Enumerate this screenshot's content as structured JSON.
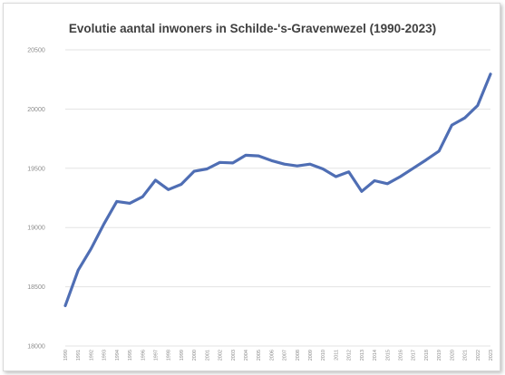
{
  "chart_data": {
    "type": "line",
    "title": "Evolutie aantal inwoners in Schilde-'s-Gravenwezel (1990-2023)",
    "xlabel": "",
    "ylabel": "",
    "ylim": [
      18000,
      20500
    ],
    "yticks": [
      18000,
      18500,
      19000,
      19500,
      20000,
      20500
    ],
    "ytick_labels": [
      "18000",
      "18500",
      "19000",
      "19500",
      "20000",
      "20500"
    ],
    "grid": true,
    "line_color": "#4f6eb4",
    "categories": [
      "1990",
      "1991",
      "1992",
      "1993",
      "1994",
      "1995",
      "1996",
      "1997",
      "1998",
      "1999",
      "2000",
      "2001",
      "2002",
      "2003",
      "2004",
      "2005",
      "2006",
      "2007",
      "2008",
      "2009",
      "2010",
      "2011",
      "2012",
      "2013",
      "2014",
      "2015",
      "2016",
      "2017",
      "2018",
      "2019",
      "2020",
      "2021",
      "2022",
      "2023"
    ],
    "values": [
      18340,
      18640,
      18820,
      19030,
      19220,
      19205,
      19260,
      19400,
      19320,
      19365,
      19475,
      19495,
      19550,
      19545,
      19610,
      19605,
      19565,
      19535,
      19520,
      19535,
      19495,
      19430,
      19470,
      19305,
      19395,
      19370,
      19430,
      19500,
      19570,
      19645,
      19865,
      19925,
      20030,
      20295
    ]
  }
}
